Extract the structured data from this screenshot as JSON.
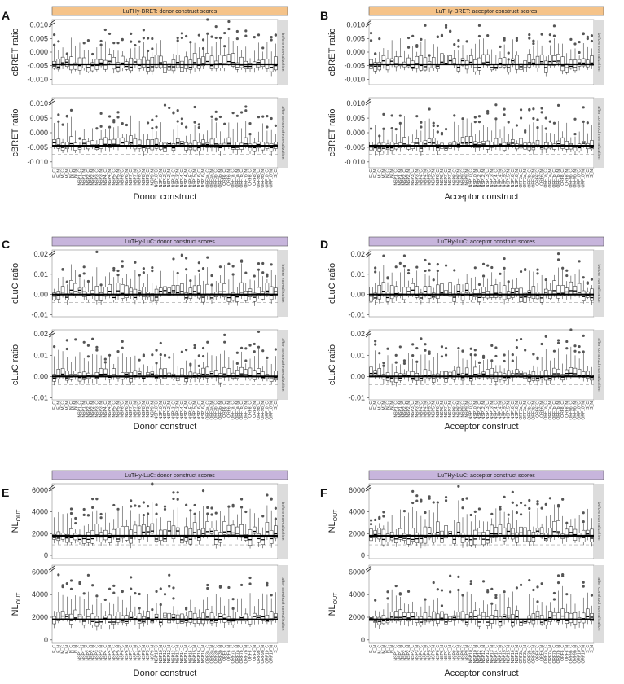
{
  "colors": {
    "bret_strip": "#f5c389",
    "luc_strip": "#c7b5dc",
    "facet_strip": "#dcdcdc",
    "box_edge": "#222222",
    "outlier": "#555555"
  },
  "facets": [
    "before normalization",
    "after construct normalization"
  ],
  "donor_categories": [
    "E_C",
    "E_N",
    "M_C",
    "M_N",
    "N_C",
    "N_N",
    "NSP1_C",
    "NSP1_N",
    "NSP2_C",
    "NSP2_N",
    "NSP3_C",
    "NSP3_N",
    "NSP4_C",
    "NSP4_N",
    "NSP5_C",
    "NSP5_N",
    "NSP6_C",
    "NSP6_N",
    "NSP7_C",
    "NSP7_N",
    "NSP8_C",
    "NSP8_N",
    "NSP9_C",
    "NSP9_N",
    "NSP10_C",
    "NSP10_N",
    "NSP12_C",
    "NSP12_N",
    "NSP13_C",
    "NSP13_N",
    "NSP14_C",
    "NSP14_N",
    "NSP15_C",
    "NSP15_N",
    "NSP16_C",
    "NSP16_N",
    "ORF3a_C",
    "ORF3a_N",
    "ORF3b_C",
    "ORF3b_N",
    "ORF6_C",
    "ORF6_N",
    "ORF7a_C",
    "ORF7a_N",
    "ORF7b_C",
    "ORF7b_N",
    "ORF8_C",
    "ORF8_N",
    "ORF9b_C",
    "ORF9b_N",
    "ORF10_C",
    "ORF10_N",
    "S_C"
  ],
  "acceptor_categories": [
    "E_C",
    "E_N",
    "M_C",
    "M_N",
    "N_C",
    "N_N",
    "NSP1_C",
    "NSP1_N",
    "NSP2_C",
    "NSP2_N",
    "NSP3_C",
    "NSP3_N",
    "NSP4_C",
    "NSP4_N",
    "NSP5_C",
    "NSP5_N",
    "NSP6_C",
    "NSP6_N",
    "NSP7_C",
    "NSP7_N",
    "NSP8_C",
    "NSP8_N",
    "NSP9_C",
    "NSP9_N",
    "NSP10_C",
    "NSP10_N",
    "NSP12_C",
    "NSP12_N",
    "NSP13_C",
    "NSP13_N",
    "NSP14_C",
    "NSP14_N",
    "NSP15_C",
    "NSP15_N",
    "NSP16_C",
    "NSP16_N",
    "ORF3a_C",
    "ORF3a_N",
    "ORF3b_C",
    "ORF3b_N",
    "ORF6_C",
    "ORF6_N",
    "ORF7a_C",
    "ORF7a_N",
    "ORF7b_C",
    "ORF7b_N",
    "ORF8_C",
    "ORF8_N",
    "ORF9b_C",
    "ORF9b_N",
    "ORF10_C",
    "ORF10_N",
    "S_C",
    "S_N"
  ],
  "chart_data": [
    {
      "panel": "A",
      "type": "boxplot",
      "title": "LuTHy-BRET: donor construct scores",
      "xlabel": "Donor construct",
      "ylabel": "cBRET ratio",
      "ylim": [
        -0.012,
        0.012
      ],
      "yticks": [
        -0.01,
        -0.005,
        0.0,
        0.005,
        0.01
      ],
      "ytick_labels": [
        "-0.010",
        "-0.005",
        "0.000",
        "0.005",
        "0.010"
      ],
      "categories_key": "donor_categories",
      "median_line": -0.0045,
      "strip": "bret",
      "seed": 11
    },
    {
      "panel": "B",
      "type": "boxplot",
      "title": "LuTHy-BRET: acceptor construct scores",
      "xlabel": "Acceptor construct",
      "ylabel": "cBRET ratio",
      "ylim": [
        -0.012,
        0.012
      ],
      "yticks": [
        -0.01,
        -0.005,
        0.0,
        0.005,
        0.01
      ],
      "ytick_labels": [
        "-0.010",
        "-0.005",
        "0.000",
        "0.005",
        "0.010"
      ],
      "categories_key": "acceptor_categories",
      "median_line": -0.0045,
      "strip": "bret",
      "seed": 23
    },
    {
      "panel": "C",
      "type": "boxplot",
      "title": "LuTHy-LuC: donor construct scores",
      "xlabel": "Donor construct",
      "ylabel": "cLuC ratio",
      "ylim": [
        -0.011,
        0.022
      ],
      "yticks": [
        -0.01,
        0.0,
        0.01,
        0.02
      ],
      "ytick_labels": [
        "-0.01",
        "0.00",
        "0.01",
        "0.02"
      ],
      "categories_key": "donor_categories",
      "median_line": 0.0,
      "strip": "luc",
      "seed": 37
    },
    {
      "panel": "D",
      "type": "boxplot",
      "title": "LuTHy-LuC: acceptor construct scores",
      "xlabel": "Acceptor construct",
      "ylabel": "cLuC ratio",
      "ylim": [
        -0.011,
        0.022
      ],
      "yticks": [
        -0.01,
        0.0,
        0.01,
        0.02
      ],
      "ytick_labels": [
        "-0.01",
        "0.00",
        "0.01",
        "0.02"
      ],
      "categories_key": "acceptor_categories",
      "median_line": 0.0,
      "strip": "luc",
      "seed": 41
    },
    {
      "panel": "E",
      "type": "boxplot",
      "title": "LuTHy-LuC: donor construct scores",
      "xlabel": "Donor construct",
      "ylabel": "NL",
      "ylabel_sub": "OUT",
      "ylim": [
        -300,
        6600
      ],
      "yticks": [
        0,
        2000,
        4000,
        6000
      ],
      "ytick_labels": [
        "0",
        "2000",
        "4000",
        "6000"
      ],
      "categories_key": "donor_categories",
      "median_line": 1800,
      "strip": "luc",
      "seed": 53
    },
    {
      "panel": "F",
      "type": "boxplot",
      "title": "LuTHy-LuC: acceptor construct scores",
      "xlabel": "Acceptor construct",
      "ylabel": "NL",
      "ylabel_sub": "OUT",
      "ylim": [
        -300,
        6600
      ],
      "yticks": [
        0,
        2000,
        4000,
        6000
      ],
      "ytick_labels": [
        "0",
        "2000",
        "4000",
        "6000"
      ],
      "categories_key": "acceptor_categories",
      "median_line": 1800,
      "strip": "luc",
      "seed": 67
    }
  ]
}
